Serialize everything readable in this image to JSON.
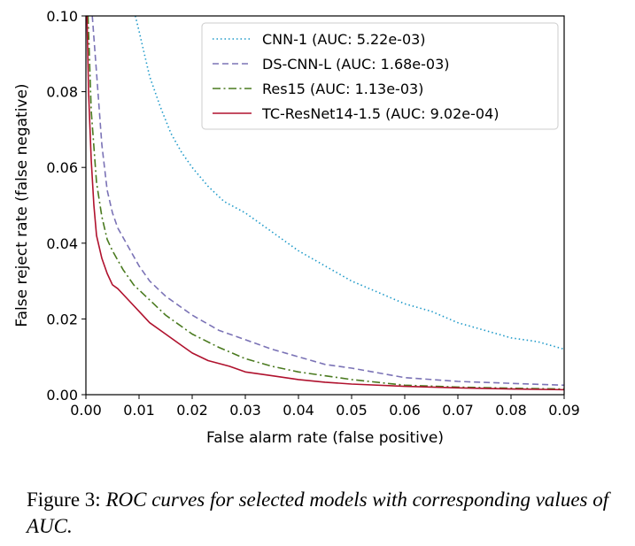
{
  "chart_data": {
    "type": "line",
    "title": "",
    "xlabel": "False alarm rate (false positive)",
    "ylabel": "False reject rate (false negative)",
    "xlim": [
      0,
      0.09
    ],
    "ylim": [
      0,
      0.1
    ],
    "x_ticks": [
      "0.00",
      "0.01",
      "0.02",
      "0.03",
      "0.04",
      "0.05",
      "0.06",
      "0.07",
      "0.08",
      "0.09"
    ],
    "y_ticks": [
      "0.00",
      "0.02",
      "0.04",
      "0.06",
      "0.08",
      "0.10"
    ],
    "grid": false,
    "legend_position": "top-right",
    "series": [
      {
        "name": "CNN-1 (AUC: 5.22e-03)",
        "color": "#1f9ac9",
        "style": "dotted",
        "points": [
          [
            0.0093,
            0.1
          ],
          [
            0.01,
            0.096
          ],
          [
            0.011,
            0.09
          ],
          [
            0.012,
            0.084
          ],
          [
            0.014,
            0.076
          ],
          [
            0.016,
            0.069
          ],
          [
            0.018,
            0.064
          ],
          [
            0.02,
            0.06
          ],
          [
            0.023,
            0.055
          ],
          [
            0.026,
            0.051
          ],
          [
            0.03,
            0.048
          ],
          [
            0.035,
            0.043
          ],
          [
            0.04,
            0.038
          ],
          [
            0.045,
            0.034
          ],
          [
            0.05,
            0.03
          ],
          [
            0.055,
            0.027
          ],
          [
            0.06,
            0.024
          ],
          [
            0.065,
            0.022
          ],
          [
            0.07,
            0.019
          ],
          [
            0.075,
            0.017
          ],
          [
            0.08,
            0.015
          ],
          [
            0.085,
            0.014
          ],
          [
            0.09,
            0.012
          ]
        ]
      },
      {
        "name": "DS-CNN-L (AUC: 1.68e-03)",
        "color": "#7b73b6",
        "style": "dashed",
        "points": [
          [
            0.0012,
            0.1
          ],
          [
            0.002,
            0.085
          ],
          [
            0.003,
            0.066
          ],
          [
            0.004,
            0.054
          ],
          [
            0.005,
            0.048
          ],
          [
            0.006,
            0.044
          ],
          [
            0.008,
            0.039
          ],
          [
            0.01,
            0.034
          ],
          [
            0.012,
            0.03
          ],
          [
            0.015,
            0.026
          ],
          [
            0.02,
            0.021
          ],
          [
            0.025,
            0.017
          ],
          [
            0.03,
            0.0145
          ],
          [
            0.035,
            0.012
          ],
          [
            0.04,
            0.01
          ],
          [
            0.045,
            0.008
          ],
          [
            0.05,
            0.007
          ],
          [
            0.06,
            0.0045
          ],
          [
            0.07,
            0.0035
          ],
          [
            0.08,
            0.003
          ],
          [
            0.09,
            0.0025
          ]
        ]
      },
      {
        "name": "Res15 (AUC: 1.13e-03)",
        "color": "#4a7a1f",
        "style": "dashdot",
        "points": [
          [
            0.0004,
            0.1
          ],
          [
            0.001,
            0.075
          ],
          [
            0.002,
            0.056
          ],
          [
            0.003,
            0.047
          ],
          [
            0.004,
            0.041
          ],
          [
            0.005,
            0.038
          ],
          [
            0.007,
            0.033
          ],
          [
            0.009,
            0.029
          ],
          [
            0.012,
            0.025
          ],
          [
            0.015,
            0.021
          ],
          [
            0.02,
            0.016
          ],
          [
            0.025,
            0.0125
          ],
          [
            0.03,
            0.0095
          ],
          [
            0.035,
            0.0075
          ],
          [
            0.04,
            0.006
          ],
          [
            0.05,
            0.004
          ],
          [
            0.06,
            0.0025
          ],
          [
            0.07,
            0.002
          ],
          [
            0.08,
            0.0017
          ],
          [
            0.09,
            0.0015
          ]
        ]
      },
      {
        "name": "TC-ResNet14-1.5 (AUC: 9.02e-04)",
        "color": "#b0122e",
        "style": "solid",
        "points": [
          [
            0.0002,
            0.1
          ],
          [
            0.0005,
            0.08
          ],
          [
            0.001,
            0.062
          ],
          [
            0.0015,
            0.05
          ],
          [
            0.002,
            0.042
          ],
          [
            0.003,
            0.036
          ],
          [
            0.004,
            0.032
          ],
          [
            0.005,
            0.029
          ],
          [
            0.006,
            0.028
          ],
          [
            0.008,
            0.025
          ],
          [
            0.01,
            0.022
          ],
          [
            0.012,
            0.019
          ],
          [
            0.015,
            0.016
          ],
          [
            0.018,
            0.013
          ],
          [
            0.02,
            0.011
          ],
          [
            0.023,
            0.009
          ],
          [
            0.027,
            0.0075
          ],
          [
            0.03,
            0.006
          ],
          [
            0.035,
            0.005
          ],
          [
            0.04,
            0.004
          ],
          [
            0.045,
            0.0033
          ],
          [
            0.05,
            0.0028
          ],
          [
            0.06,
            0.0022
          ],
          [
            0.07,
            0.0018
          ],
          [
            0.08,
            0.0015
          ],
          [
            0.09,
            0.0013
          ]
        ]
      }
    ]
  },
  "caption": {
    "label": "Figure 3:",
    "text": "ROC curves for selected models with corresponding values of AUC."
  }
}
